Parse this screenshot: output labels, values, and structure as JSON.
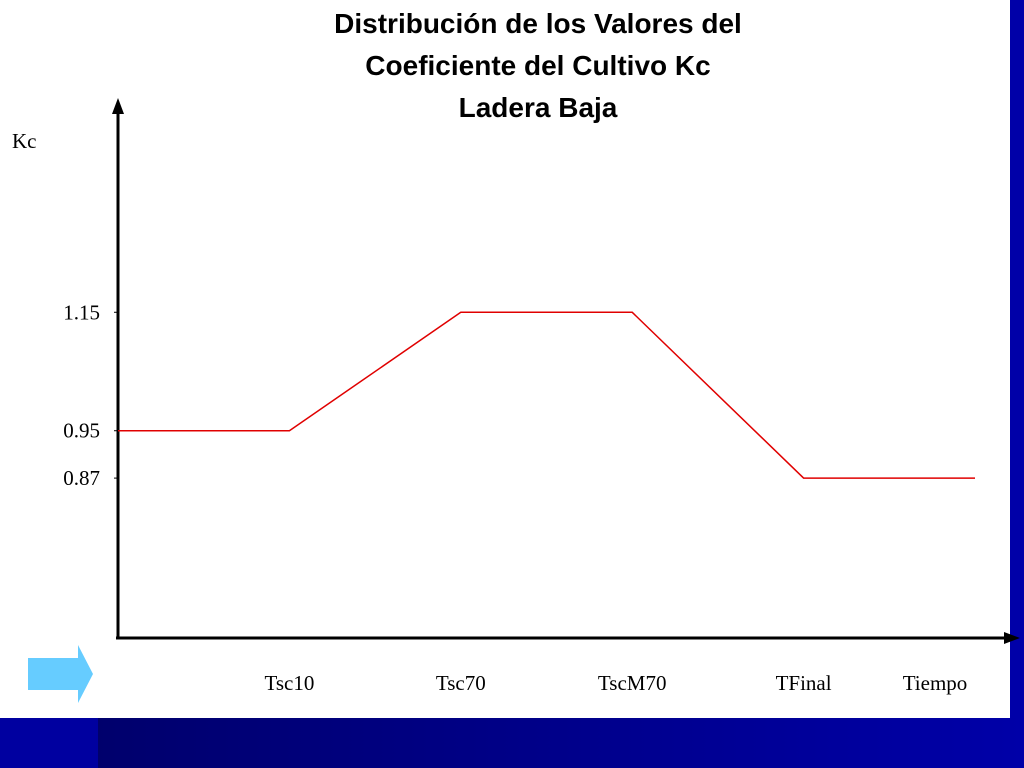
{
  "chart_data": {
    "type": "line",
    "title": [
      "Distribución de los Valores del",
      "Coeficiente del Cultivo Kc",
      "Ladera Baja"
    ],
    "y_label": "Kc",
    "x_label": "Tiempo",
    "categories": [
      null,
      "Tsc10",
      "Tsc70",
      "TscM70",
      "TFinal",
      null
    ],
    "series": [
      {
        "name": "Kc",
        "color": "#e00000",
        "values": [
          0.95,
          0.95,
          1.15,
          1.15,
          0.87,
          0.87
        ]
      }
    ],
    "ylim": [
      0.6,
      1.5
    ],
    "yticks": [
      1.15,
      0.95,
      0.87
    ],
    "grid": false
  }
}
